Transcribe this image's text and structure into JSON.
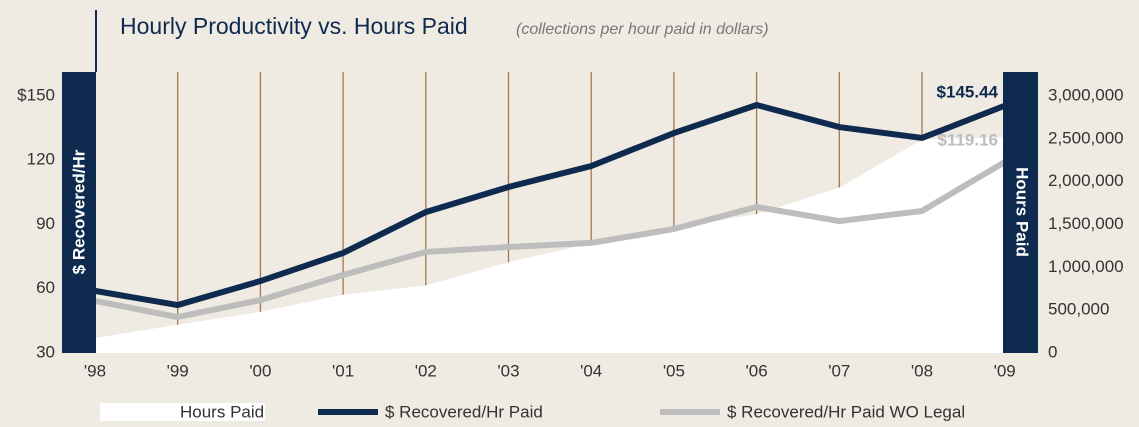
{
  "chart_data": {
    "type": "line",
    "title": "Hourly Productivity vs. Hours Paid",
    "subtitle": "(collections per hour paid in dollars)",
    "y_label": "$ Recovered/Hr",
    "y2_label": "Hours Paid",
    "categories": [
      "'98",
      "'99",
      "'00",
      "'01",
      "'02",
      "'03",
      "'04",
      "'05",
      "'06",
      "'07",
      "'08",
      "'09"
    ],
    "series": [
      {
        "name": "Hours Paid",
        "type": "area",
        "axis": "y2",
        "color": "#ffffff",
        "values": [
          175000,
          330000,
          480000,
          680000,
          790000,
          1060000,
          1280000,
          1460000,
          1620000,
          1930000,
          2490000,
          2520000
        ]
      },
      {
        "name": "$ Recovered/Hr Paid",
        "color": "#0f2a4f",
        "values": [
          59,
          52.4,
          63.6,
          76.7,
          95.8,
          107.5,
          117.3,
          132.7,
          145.8,
          135.5,
          130.4,
          145.44
        ],
        "value_labels": [
          null,
          null,
          null,
          null,
          null,
          null,
          null,
          null,
          null,
          null,
          null,
          "$145.44"
        ]
      },
      {
        "name": "$ Recovered/Hr Paid WO Legal",
        "color": "#bdbdbd",
        "values": [
          54.3,
          46.8,
          54.7,
          66.4,
          77.2,
          79.5,
          81.4,
          87.9,
          98.2,
          91.6,
          96.3,
          119.16
        ],
        "value_labels": [
          null,
          null,
          null,
          null,
          null,
          null,
          null,
          null,
          null,
          null,
          null,
          "$119.16"
        ]
      }
    ],
    "ylim": [
      30,
      150
    ],
    "yticks": [
      {
        "value": 150,
        "label": "$150"
      },
      120,
      90,
      60,
      30
    ],
    "y2lim": [
      0,
      3000000
    ],
    "y2ticks": [
      {
        "value": 3000000,
        "label": "3,000,000"
      },
      {
        "value": 2500000,
        "label": "2,500,000"
      },
      {
        "value": 2000000,
        "label": "2,000,000"
      },
      {
        "value": 1500000,
        "label": "1,500,000"
      },
      {
        "value": 1000000,
        "label": "1,000,000"
      },
      {
        "value": 500000,
        "label": "500,000"
      },
      0
    ],
    "grid": true,
    "legend": "bottom"
  }
}
